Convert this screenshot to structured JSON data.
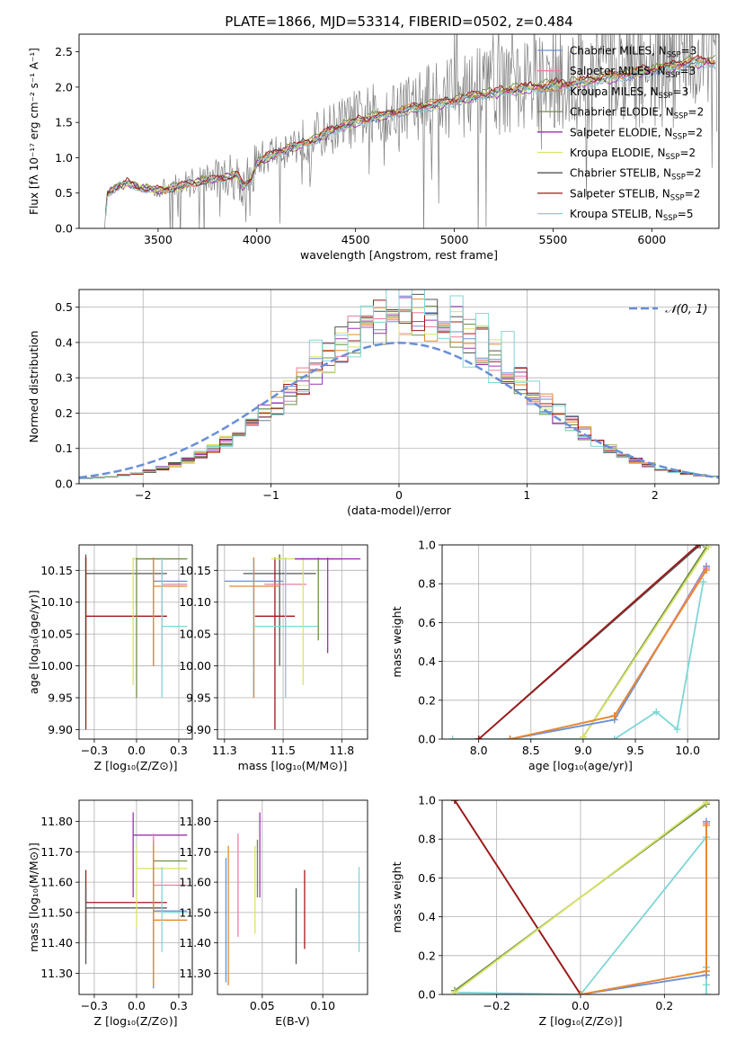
{
  "figure": {
    "title": "PLATE=1866, MJD=53314, FIBERID=0502, z=0.484"
  },
  "colors": {
    "chabrier_miles": "#6a8fd6",
    "salpeter_miles": "#e87fa0",
    "kroupa_miles": "#e58a2b",
    "chabrier_elodie": "#6f8f45",
    "salpeter_elodie": "#9a33b0",
    "kroupa_elodie": "#d9e36a",
    "chabrier_stelib": "#555555",
    "salpeter_stelib": "#a01818",
    "kroupa_stelib": "#7fd6d6",
    "data": "#808080",
    "normal": "#6a8fd6"
  },
  "chart_data": [
    {
      "id": "spectrum",
      "type": "line",
      "xlabel": "wavelength [Angstrom, rest frame]",
      "ylabel": "Flux [fλ 10⁻¹⁷ erg cm⁻² s⁻¹ A⁻¹]",
      "xlim": [
        3100,
        6340
      ],
      "ylim": [
        0,
        2.75
      ],
      "xticks": [
        3500,
        4000,
        4500,
        5000,
        5500,
        6000
      ],
      "yticks": [
        0.0,
        0.5,
        1.0,
        1.5,
        2.0,
        2.5
      ],
      "grid": false,
      "legend_position": "right",
      "legend": [
        {
          "base": "Chabrier MILES, N",
          "sub": "SSP",
          "tail": "=3",
          "color_key": "chabrier_miles"
        },
        {
          "base": "Salpeter MILES, N",
          "sub": "SSP",
          "tail": "=3",
          "color_key": "salpeter_miles"
        },
        {
          "base": "Kroupa MILES, N",
          "sub": "SSP",
          "tail": "=3",
          "color_key": "kroupa_miles"
        },
        {
          "base": "Chabrier ELODIE, N",
          "sub": "SSP",
          "tail": "=2",
          "color_key": "chabrier_elodie"
        },
        {
          "base": "Salpeter ELODIE, N",
          "sub": "SSP",
          "tail": "=2",
          "color_key": "salpeter_elodie"
        },
        {
          "base": "Kroupa ELODIE, N",
          "sub": "SSP",
          "tail": "=2",
          "color_key": "kroupa_elodie"
        },
        {
          "base": "Chabrier STELIB, N",
          "sub": "SSP",
          "tail": "=2",
          "color_key": "chabrier_stelib"
        },
        {
          "base": "Salpeter STELIB, N",
          "sub": "SSP",
          "tail": "=2",
          "color_key": "salpeter_stelib"
        },
        {
          "base": "Kroupa STELIB, N",
          "sub": "SSP",
          "tail": "=5",
          "color_key": "kroupa_stelib"
        }
      ],
      "continuum": [
        [
          3230,
          0.0
        ],
        [
          3240,
          0.5
        ],
        [
          3300,
          0.62
        ],
        [
          3350,
          0.66
        ],
        [
          3400,
          0.6
        ],
        [
          3500,
          0.55
        ],
        [
          3600,
          0.6
        ],
        [
          3700,
          0.68
        ],
        [
          3800,
          0.72
        ],
        [
          3900,
          0.78
        ],
        [
          3930,
          0.6
        ],
        [
          3970,
          0.7
        ],
        [
          4000,
          0.95
        ],
        [
          4100,
          1.1
        ],
        [
          4200,
          1.2
        ],
        [
          4300,
          1.3
        ],
        [
          4400,
          1.45
        ],
        [
          4500,
          1.55
        ],
        [
          4600,
          1.62
        ],
        [
          4700,
          1.68
        ],
        [
          4800,
          1.75
        ],
        [
          4900,
          1.8
        ],
        [
          5000,
          1.85
        ],
        [
          5100,
          1.92
        ],
        [
          5200,
          1.97
        ],
        [
          5300,
          2.02
        ],
        [
          5400,
          2.05
        ],
        [
          5500,
          2.08
        ],
        [
          5600,
          2.1
        ],
        [
          5700,
          2.15
        ],
        [
          5800,
          2.2
        ],
        [
          5900,
          2.25
        ],
        [
          6000,
          2.3
        ],
        [
          6100,
          2.35
        ],
        [
          6200,
          2.42
        ]
      ]
    },
    {
      "id": "residuals",
      "type": "step",
      "xlabel": "(data-model)/error",
      "ylabel": "Normed distribution",
      "xlim": [
        -2.5,
        2.5
      ],
      "ylim": [
        0,
        0.55
      ],
      "xticks": [
        -2,
        -1,
        0,
        1,
        2
      ],
      "yticks": [
        0.0,
        0.1,
        0.2,
        0.3,
        0.4,
        0.5
      ],
      "grid": true,
      "legend_position": "top-right",
      "legend": [
        {
          "label": "𝒩(0, 1)",
          "color_key": "normal"
        }
      ],
      "bin_width": 0.1
    },
    {
      "id": "age_vs_z",
      "type": "error-bars",
      "xlabel": "Z [log₁₀(Z/Z⊙)]",
      "ylabel": "age  [log₁₀(age/yr)]",
      "xlim": [
        -0.34,
        0.33
      ],
      "ylim": [
        9.885,
        10.19
      ],
      "xticks": [
        -0.25,
        0.0,
        0.25
      ],
      "yticks": [
        9.9,
        9.95,
        10.0,
        10.05,
        10.1,
        10.15
      ],
      "grid": true,
      "bars": [
        {
          "color_key": "chabrier_stelib",
          "x": [
            -0.3,
            0.18
          ],
          "y": 10.145,
          "yerr": [
            10.0,
            10.175
          ]
        },
        {
          "color_key": "salpeter_stelib",
          "x": [
            -0.3,
            0.18
          ],
          "y": 10.078,
          "yerr": [
            9.9,
            10.17
          ]
        },
        {
          "color_key": "kroupa_elodie",
          "x": [
            -0.02,
            0.3
          ],
          "y": 10.168,
          "yerr": [
            9.97,
            10.17
          ]
        },
        {
          "color_key": "chabrier_elodie",
          "x": [
            0.0,
            0.3
          ],
          "y": 10.168,
          "yerr": [
            9.95,
            10.17
          ]
        },
        {
          "color_key": "chabrier_miles",
          "x": [
            0.1,
            0.3
          ],
          "y": 10.133,
          "yerr": [
            10.0,
            10.17
          ]
        },
        {
          "color_key": "kroupa_miles",
          "x": [
            0.1,
            0.3
          ],
          "y": 10.125,
          "yerr": [
            10.0,
            10.17
          ]
        },
        {
          "color_key": "salpeter_miles",
          "x": [
            0.15,
            0.3
          ],
          "y": 10.128,
          "yerr": [
            10.0,
            10.17
          ]
        },
        {
          "color_key": "kroupa_stelib",
          "x": [
            0.15,
            0.3
          ],
          "y": 10.062,
          "yerr": [
            9.95,
            10.17
          ]
        }
      ]
    },
    {
      "id": "age_vs_mass",
      "type": "error-bars",
      "xlabel": "mass [log₁₀(M/M⊙)]",
      "ylabel": "",
      "xlim": [
        11.22,
        11.86
      ],
      "ylim": [
        9.885,
        10.19
      ],
      "xticks": [
        11.25,
        11.5,
        11.75
      ],
      "yticks": [
        9.9,
        9.95,
        10.0,
        10.05,
        10.1,
        10.15
      ],
      "grid": true,
      "bars": [
        {
          "color_key": "chabrier_stelib",
          "x": [
            11.33,
            11.64
          ],
          "y": 10.145,
          "yerr": [
            10.0,
            10.175
          ]
        },
        {
          "color_key": "salpeter_stelib",
          "x": [
            11.38,
            11.55
          ],
          "y": 10.078,
          "yerr": [
            9.9,
            10.17
          ]
        },
        {
          "color_key": "chabrier_miles",
          "x": [
            11.25,
            11.5
          ],
          "y": 10.133,
          "yerr": [
            9.95,
            10.17
          ]
        },
        {
          "color_key": "kroupa_miles",
          "x": [
            11.27,
            11.48
          ],
          "y": 10.125,
          "yerr": [
            9.95,
            10.17
          ]
        },
        {
          "color_key": "salpeter_miles",
          "x": [
            11.42,
            11.6
          ],
          "y": 10.128,
          "yerr": [
            9.95,
            10.17
          ]
        },
        {
          "color_key": "kroupa_stelib",
          "x": [
            11.37,
            11.65
          ],
          "y": 10.062,
          "yerr": [
            9.95,
            10.17
          ]
        },
        {
          "color_key": "kroupa_elodie",
          "x": [
            11.45,
            11.72
          ],
          "y": 10.168,
          "yerr": [
            9.97,
            10.17
          ]
        },
        {
          "color_key": "chabrier_elodie",
          "x": [
            11.55,
            11.75
          ],
          "y": 10.168,
          "yerr": [
            10.04,
            10.17
          ]
        },
        {
          "color_key": "salpeter_elodie",
          "x": [
            11.55,
            11.83
          ],
          "y": 10.168,
          "yerr": [
            10.02,
            10.17
          ]
        }
      ]
    },
    {
      "id": "weight_vs_age",
      "type": "line",
      "xlabel": "age  [log₁₀(age/yr)]",
      "ylabel": "mass weight",
      "xlim": [
        7.65,
        10.3
      ],
      "ylim": [
        0,
        1.0
      ],
      "xticks": [
        8.0,
        8.5,
        9.0,
        9.5,
        10.0
      ],
      "yticks": [
        0.0,
        0.2,
        0.4,
        0.6,
        0.8,
        1.0
      ],
      "grid": true,
      "series": [
        {
          "color_key": "kroupa_stelib",
          "x": [
            7.75,
            9.3,
            9.7,
            9.9,
            10.15
          ],
          "y": [
            0.0,
            0.0,
            0.14,
            0.05,
            0.81
          ]
        },
        {
          "color_key": "chabrier_stelib",
          "x": [
            8.0,
            10.12
          ],
          "y": [
            0.0,
            1.0
          ]
        },
        {
          "color_key": "salpeter_stelib",
          "x": [
            8.0,
            10.1
          ],
          "y": [
            0.0,
            1.0
          ]
        },
        {
          "color_key": "chabrier_elodie",
          "x": [
            9.0,
            10.18
          ],
          "y": [
            0.01,
            0.99
          ]
        },
        {
          "color_key": "kroupa_elodie",
          "x": [
            9.0,
            10.2
          ],
          "y": [
            0.01,
            0.99
          ]
        },
        {
          "color_key": "chabrier_miles",
          "x": [
            8.3,
            9.3,
            10.18
          ],
          "y": [
            0.0,
            0.1,
            0.89
          ]
        },
        {
          "color_key": "salpeter_miles",
          "x": [
            8.3,
            9.3,
            10.18
          ],
          "y": [
            0.0,
            0.12,
            0.88
          ]
        },
        {
          "color_key": "kroupa_miles",
          "x": [
            8.3,
            9.3,
            10.18
          ],
          "y": [
            0.0,
            0.12,
            0.87
          ]
        }
      ]
    },
    {
      "id": "mass_vs_z",
      "type": "error-bars",
      "xlabel": "Z [log₁₀(Z/Z⊙)]",
      "ylabel": "mass [log₁₀(M/M⊙)]",
      "xlim": [
        -0.34,
        0.33
      ],
      "ylim": [
        11.23,
        11.87
      ],
      "xticks": [
        -0.25,
        0.0,
        0.25
      ],
      "yticks": [
        11.3,
        11.4,
        11.5,
        11.6,
        11.7,
        11.8
      ],
      "grid": true,
      "bars": [
        {
          "color_key": "salpeter_stelib",
          "x": [
            -0.3,
            0.18
          ],
          "y": 11.533,
          "yerr": [
            11.4,
            11.64
          ]
        },
        {
          "color_key": "chabrier_stelib",
          "x": [
            -0.3,
            0.18
          ],
          "y": 11.515,
          "yerr": [
            11.33,
            11.58
          ]
        },
        {
          "color_key": "salpeter_elodie",
          "x": [
            -0.02,
            0.3
          ],
          "y": 11.755,
          "yerr": [
            11.55,
            11.83
          ]
        },
        {
          "color_key": "kroupa_elodie",
          "x": [
            0.0,
            0.3
          ],
          "y": 11.645,
          "yerr": [
            11.45,
            11.72
          ]
        },
        {
          "color_key": "chabrier_elodie",
          "x": [
            0.1,
            0.3
          ],
          "y": 11.67,
          "yerr": [
            11.55,
            11.74
          ]
        },
        {
          "color_key": "salpeter_miles",
          "x": [
            0.1,
            0.3
          ],
          "y": 11.59,
          "yerr": [
            11.42,
            11.76
          ]
        },
        {
          "color_key": "chabrier_miles",
          "x": [
            0.1,
            0.3
          ],
          "y": 11.505,
          "yerr": [
            11.25,
            11.68
          ]
        },
        {
          "color_key": "kroupa_miles",
          "x": [
            0.1,
            0.3
          ],
          "y": 11.475,
          "yerr": [
            11.26,
            11.72
          ]
        },
        {
          "color_key": "kroupa_stelib",
          "x": [
            0.15,
            0.3
          ],
          "y": 11.5,
          "yerr": [
            11.37,
            11.65
          ]
        }
      ]
    },
    {
      "id": "mass_vs_ebv",
      "type": "error-bars",
      "xlabel": "E(B-V)",
      "ylabel": "",
      "xlim": [
        0.013,
        0.137
      ],
      "ylim": [
        11.23,
        11.87
      ],
      "xticks": [
        0.05,
        0.1
      ],
      "yticks": [
        11.3,
        11.4,
        11.5,
        11.6,
        11.7,
        11.8
      ],
      "grid": true,
      "bars": [
        {
          "color_key": "chabrier_miles",
          "x": 0.02,
          "yerr": [
            11.27,
            11.68
          ]
        },
        {
          "color_key": "kroupa_miles",
          "x": 0.022,
          "yerr": [
            11.26,
            11.72
          ]
        },
        {
          "color_key": "salpeter_miles",
          "x": 0.03,
          "yerr": [
            11.42,
            11.76
          ]
        },
        {
          "color_key": "kroupa_elodie",
          "x": 0.044,
          "yerr": [
            11.43,
            11.72
          ]
        },
        {
          "color_key": "chabrier_elodie",
          "x": 0.046,
          "yerr": [
            11.55,
            11.74
          ]
        },
        {
          "color_key": "salpeter_elodie",
          "x": 0.048,
          "yerr": [
            11.55,
            11.83
          ]
        },
        {
          "color_key": "chabrier_stelib",
          "x": 0.078,
          "yerr": [
            11.33,
            11.58
          ]
        },
        {
          "color_key": "salpeter_stelib",
          "x": 0.085,
          "yerr": [
            11.38,
            11.64
          ]
        },
        {
          "color_key": "kroupa_stelib",
          "x": 0.13,
          "yerr": [
            11.37,
            11.65
          ]
        }
      ]
    },
    {
      "id": "weight_vs_z",
      "type": "line",
      "xlabel": "Z [log₁₀(Z/Z⊙)]",
      "ylabel": "mass weight",
      "xlim": [
        -0.33,
        0.33
      ],
      "ylim": [
        0,
        1.0
      ],
      "xticks": [
        -0.2,
        0.0,
        0.2
      ],
      "yticks": [
        0.0,
        0.2,
        0.4,
        0.6,
        0.8,
        1.0
      ],
      "grid": true,
      "series": [
        {
          "color_key": "chabrier_stelib",
          "x": [
            -0.3,
            0.0
          ],
          "y": [
            1.0,
            0.0
          ]
        },
        {
          "color_key": "salpeter_stelib",
          "x": [
            -0.3,
            0.0
          ],
          "y": [
            1.0,
            0.0
          ]
        },
        {
          "color_key": "kroupa_stelib",
          "x": [
            -0.3,
            0.0,
            0.3,
            0.3,
            0.3,
            0.3
          ],
          "y": [
            0.01,
            0.0,
            0.81,
            0.14,
            0.05,
            0.0
          ]
        },
        {
          "color_key": "chabrier_elodie",
          "x": [
            -0.3,
            0.3
          ],
          "y": [
            0.02,
            0.98
          ]
        },
        {
          "color_key": "kroupa_elodie",
          "x": [
            -0.3,
            0.3
          ],
          "y": [
            0.01,
            0.99
          ]
        },
        {
          "color_key": "chabrier_miles",
          "x": [
            0.0,
            0.3,
            0.3
          ],
          "y": [
            0.0,
            0.1,
            0.89
          ]
        },
        {
          "color_key": "salpeter_miles",
          "x": [
            0.0,
            0.3,
            0.3
          ],
          "y": [
            0.0,
            0.12,
            0.88
          ]
        },
        {
          "color_key": "kroupa_miles",
          "x": [
            0.0,
            0.3,
            0.3
          ],
          "y": [
            0.0,
            0.12,
            0.87
          ]
        }
      ]
    }
  ]
}
